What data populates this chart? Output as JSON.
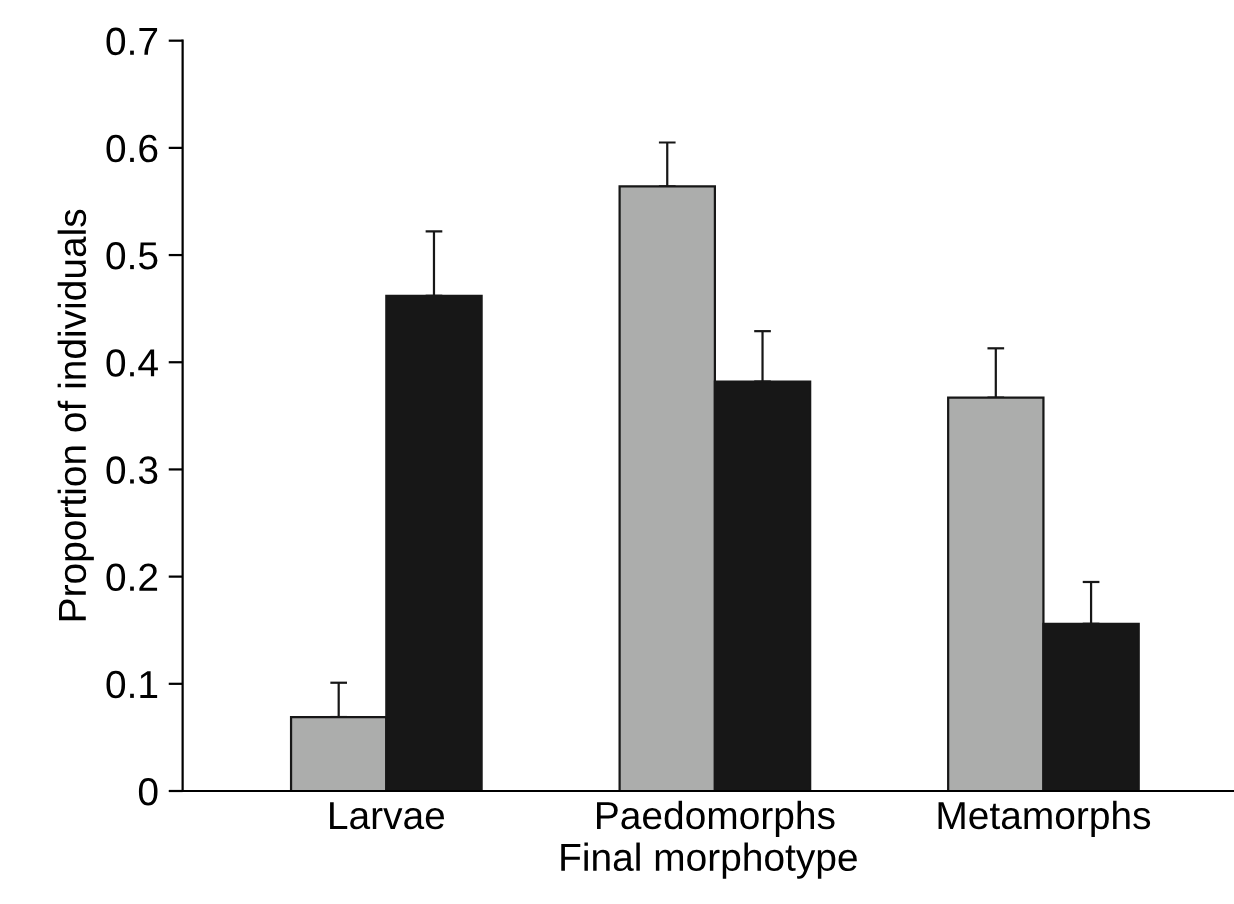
{
  "chart_data": {
    "type": "bar",
    "xlabel": "Final morphotype",
    "ylabel": "Proportion of individuals",
    "categories": [
      "Larvae",
      "Paedomorphs",
      "Metamorphs"
    ],
    "series": [
      {
        "color": "#acadac",
        "values": [
          0.069,
          0.564,
          0.367
        ],
        "errors": [
          [
            0.069,
            0.101
          ],
          [
            0.564,
            0.605
          ],
          [
            0.367,
            0.413
          ]
        ]
      },
      {
        "color": "#171717",
        "values": [
          0.462,
          0.382,
          0.156
        ],
        "errors": [
          [
            0.462,
            0.522
          ],
          [
            0.382,
            0.429
          ],
          [
            0.156,
            0.195
          ]
        ]
      }
    ],
    "ylim": [
      0,
      0.7
    ],
    "yticks": [
      {
        "value": 0,
        "label": "0"
      },
      0.1,
      0.2,
      0.3,
      0.4,
      0.5,
      0.6,
      0.7
    ],
    "grid": false,
    "legend": false
  }
}
